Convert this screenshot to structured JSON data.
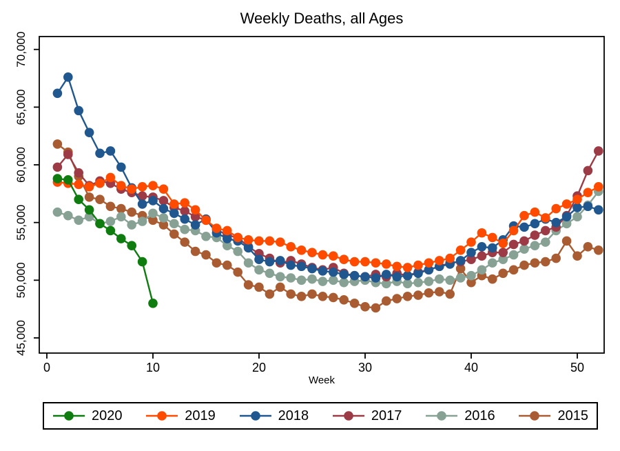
{
  "chart_data": {
    "type": "line",
    "title": "Weekly Deaths, all Ages",
    "xlabel": "Week",
    "ylabel": "",
    "xlim": [
      -0.7,
      52.6
    ],
    "ylim": [
      43700,
      71100
    ],
    "x_tick_values": [
      0,
      10,
      20,
      30,
      40,
      50
    ],
    "x_tick_labels": [
      "0",
      "10",
      "20",
      "30",
      "40",
      "50"
    ],
    "y_tick_values": [
      45000,
      50000,
      55000,
      60000,
      65000,
      70000
    ],
    "y_tick_labels": [
      "45,000",
      "50,000",
      "55,000",
      "60,000",
      "65,000",
      "70,000"
    ],
    "grid": false,
    "legend_position": "bottom",
    "marker": "circle",
    "x": [
      1,
      2,
      3,
      4,
      5,
      6,
      7,
      8,
      9,
      10,
      11,
      12,
      13,
      14,
      15,
      16,
      17,
      18,
      19,
      20,
      21,
      22,
      23,
      24,
      25,
      26,
      27,
      28,
      29,
      30,
      31,
      32,
      33,
      34,
      35,
      36,
      37,
      38,
      39,
      40,
      41,
      42,
      43,
      44,
      45,
      46,
      47,
      48,
      49,
      50,
      51,
      52
    ],
    "series": [
      {
        "name": "2020",
        "color": "#0e7c0e",
        "values": [
          58800,
          58700,
          57000,
          56100,
          54900,
          54300,
          53600,
          53000,
          51600,
          48000
        ]
      },
      {
        "name": "2019",
        "color": "#ff4b00",
        "values": [
          58500,
          58400,
          58300,
          58100,
          58400,
          58900,
          58200,
          57900,
          58100,
          58200,
          57900,
          56600,
          56700,
          56100,
          55200,
          54500,
          54300,
          53700,
          53500,
          53400,
          53400,
          53300,
          52900,
          52600,
          52400,
          52200,
          52100,
          51800,
          51600,
          51600,
          51500,
          51400,
          51200,
          51100,
          51300,
          51500,
          51700,
          51900,
          52600,
          53300,
          54100,
          53700,
          53200,
          54300,
          55600,
          55900,
          55400,
          56200,
          56600,
          57000,
          57600,
          58100
        ]
      },
      {
        "name": "2018",
        "color": "#20578f",
        "values": [
          66200,
          67600,
          64700,
          62800,
          61000,
          61200,
          59800,
          58000,
          56600,
          56900,
          56200,
          55800,
          55300,
          54800,
          55300,
          54100,
          53600,
          53400,
          52800,
          51800,
          51600,
          51700,
          51300,
          51200,
          51000,
          50800,
          50700,
          50500,
          50400,
          50300,
          50200,
          50500,
          50300,
          50400,
          50600,
          50900,
          51200,
          51400,
          51700,
          52400,
          52900,
          52800,
          53500,
          54700,
          54600,
          54900,
          55300,
          55000,
          55500,
          56300,
          56400,
          56100
        ]
      },
      {
        "name": "2017",
        "color": "#9c3b46",
        "values": [
          59800,
          60900,
          59300,
          58200,
          58600,
          58400,
          57900,
          57600,
          57300,
          57200,
          56900,
          56300,
          56000,
          55500,
          55200,
          54400,
          53900,
          53700,
          52900,
          52300,
          51900,
          51500,
          51700,
          51400,
          51100,
          50900,
          51100,
          50600,
          50400,
          50300,
          50500,
          50300,
          50600,
          50400,
          50700,
          50900,
          51200,
          51500,
          51600,
          51800,
          52100,
          52400,
          52400,
          53100,
          53400,
          53900,
          54300,
          54600,
          55600,
          57300,
          59500,
          61200
        ]
      },
      {
        "name": "2016",
        "color": "#87a294",
        "values": [
          55900,
          55600,
          55200,
          55500,
          54900,
          55100,
          55500,
          54800,
          55100,
          55800,
          55400,
          54900,
          54400,
          54300,
          53800,
          53700,
          53000,
          52500,
          51500,
          50900,
          50600,
          50300,
          50200,
          50000,
          50100,
          49900,
          50000,
          49800,
          49900,
          50000,
          49800,
          49700,
          49900,
          49700,
          49800,
          49900,
          50100,
          50000,
          50200,
          50400,
          50900,
          51500,
          51800,
          52200,
          52700,
          53000,
          53300,
          54300,
          54900,
          55500,
          56500,
          57700
        ]
      },
      {
        "name": "2015",
        "color": "#a95c32",
        "values": [
          61800,
          61100,
          59000,
          57200,
          57000,
          56400,
          56200,
          55900,
          55600,
          55200,
          54800,
          54000,
          53300,
          52500,
          52200,
          51500,
          51300,
          50700,
          49600,
          49400,
          48800,
          49400,
          48800,
          48600,
          48800,
          48600,
          48500,
          48300,
          48000,
          47700,
          47600,
          48200,
          48400,
          48600,
          48700,
          48900,
          49000,
          48800,
          51000,
          49800,
          50400,
          50100,
          50600,
          50900,
          51300,
          51500,
          51600,
          51900,
          53400,
          52100,
          52900,
          52600
        ]
      }
    ]
  }
}
